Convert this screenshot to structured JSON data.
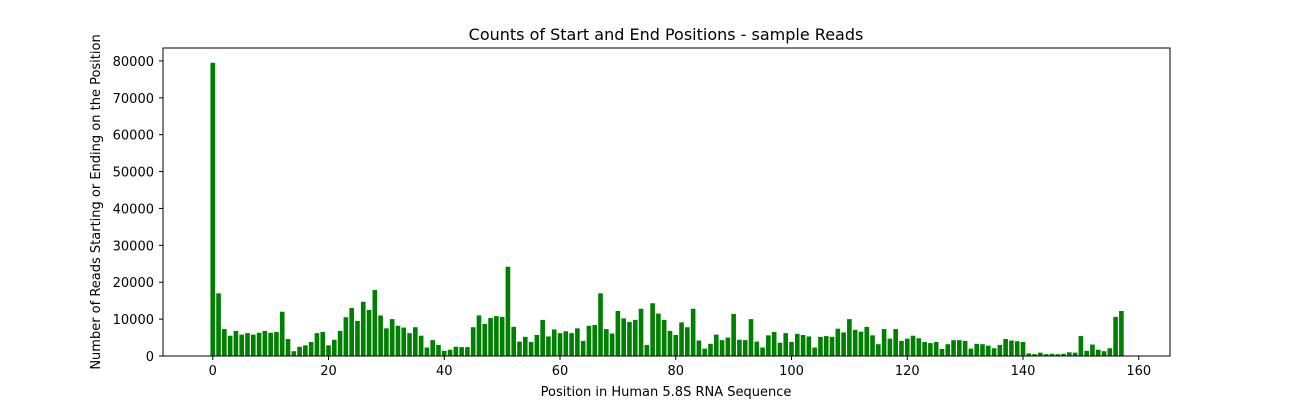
{
  "chart_data": {
    "type": "bar",
    "title": "Counts of Start and End Positions - sample Reads",
    "xlabel": "Position in Human 5.8S RNA Sequence",
    "ylabel": "Number of Reads Starting or Ending on the Position",
    "xlim": [
      -8.6,
      165.4
    ],
    "ylim": [
      0,
      83500
    ],
    "xticks": [
      0,
      20,
      40,
      60,
      80,
      100,
      120,
      140,
      160
    ],
    "yticks": [
      0,
      10000,
      20000,
      30000,
      40000,
      50000,
      60000,
      70000,
      80000
    ],
    "bar_color": "#008000",
    "grid": false,
    "legend": "none",
    "x": [
      0,
      1,
      2,
      3,
      4,
      5,
      6,
      7,
      8,
      9,
      10,
      11,
      12,
      13,
      14,
      15,
      16,
      17,
      18,
      19,
      20,
      21,
      22,
      23,
      24,
      25,
      26,
      27,
      28,
      29,
      30,
      31,
      32,
      33,
      34,
      35,
      36,
      37,
      38,
      39,
      40,
      41,
      42,
      43,
      44,
      45,
      46,
      47,
      48,
      49,
      50,
      51,
      52,
      53,
      54,
      55,
      56,
      57,
      58,
      59,
      60,
      61,
      62,
      63,
      64,
      65,
      66,
      67,
      68,
      69,
      70,
      71,
      72,
      73,
      74,
      75,
      76,
      77,
      78,
      79,
      80,
      81,
      82,
      83,
      84,
      85,
      86,
      87,
      88,
      89,
      90,
      91,
      92,
      93,
      94,
      95,
      96,
      97,
      98,
      99,
      100,
      101,
      102,
      103,
      104,
      105,
      106,
      107,
      108,
      109,
      110,
      111,
      112,
      113,
      114,
      115,
      116,
      117,
      118,
      119,
      120,
      121,
      122,
      123,
      124,
      125,
      126,
      127,
      128,
      129,
      130,
      131,
      132,
      133,
      134,
      135,
      136,
      137,
      138,
      139,
      140,
      141,
      142,
      143,
      144,
      145,
      146,
      147,
      148,
      149,
      150,
      151,
      152,
      153,
      154,
      155,
      156,
      157
    ],
    "values": [
      79500,
      17000,
      7300,
      5500,
      6800,
      5800,
      6200,
      5800,
      6300,
      6800,
      6300,
      6500,
      12000,
      4600,
      1300,
      2500,
      2900,
      3800,
      6200,
      6500,
      2900,
      4400,
      6800,
      10500,
      13000,
      9500,
      14700,
      12500,
      17900,
      11000,
      7500,
      10000,
      8200,
      7700,
      6200,
      7800,
      5500,
      2300,
      4300,
      3000,
      1400,
      1700,
      2500,
      2400,
      2400,
      7800,
      11000,
      8700,
      10300,
      10800,
      10600,
      24200,
      7900,
      3900,
      5200,
      3800,
      5700,
      9800,
      5300,
      7200,
      6200,
      6700,
      6200,
      7500,
      4100,
      8200,
      8400,
      17000,
      7300,
      6100,
      12200,
      10200,
      9200,
      9800,
      12800,
      3000,
      14300,
      11500,
      9800,
      6800,
      5700,
      9100,
      7800,
      12800,
      4200,
      2000,
      3300,
      5800,
      4300,
      5000,
      11400,
      4400,
      4300,
      10000,
      3900,
      2300,
      5600,
      6500,
      3600,
      6200,
      3800,
      6000,
      5700,
      5300,
      2300,
      5200,
      5400,
      5200,
      7400,
      6400,
      10000,
      7100,
      6600,
      7900,
      5600,
      3200,
      7300,
      4700,
      7300,
      4100,
      4700,
      5500,
      4800,
      3800,
      3500,
      3800,
      1900,
      3200,
      4300,
      4300,
      4100,
      2000,
      3300,
      3200,
      2800,
      2100,
      3000,
      4600,
      4200,
      4000,
      3800,
      700,
      500,
      900,
      500,
      600,
      500,
      600,
      1000,
      900,
      5400,
      1400,
      3100,
      1700,
      1300,
      2100,
      10600,
      12200
    ]
  }
}
